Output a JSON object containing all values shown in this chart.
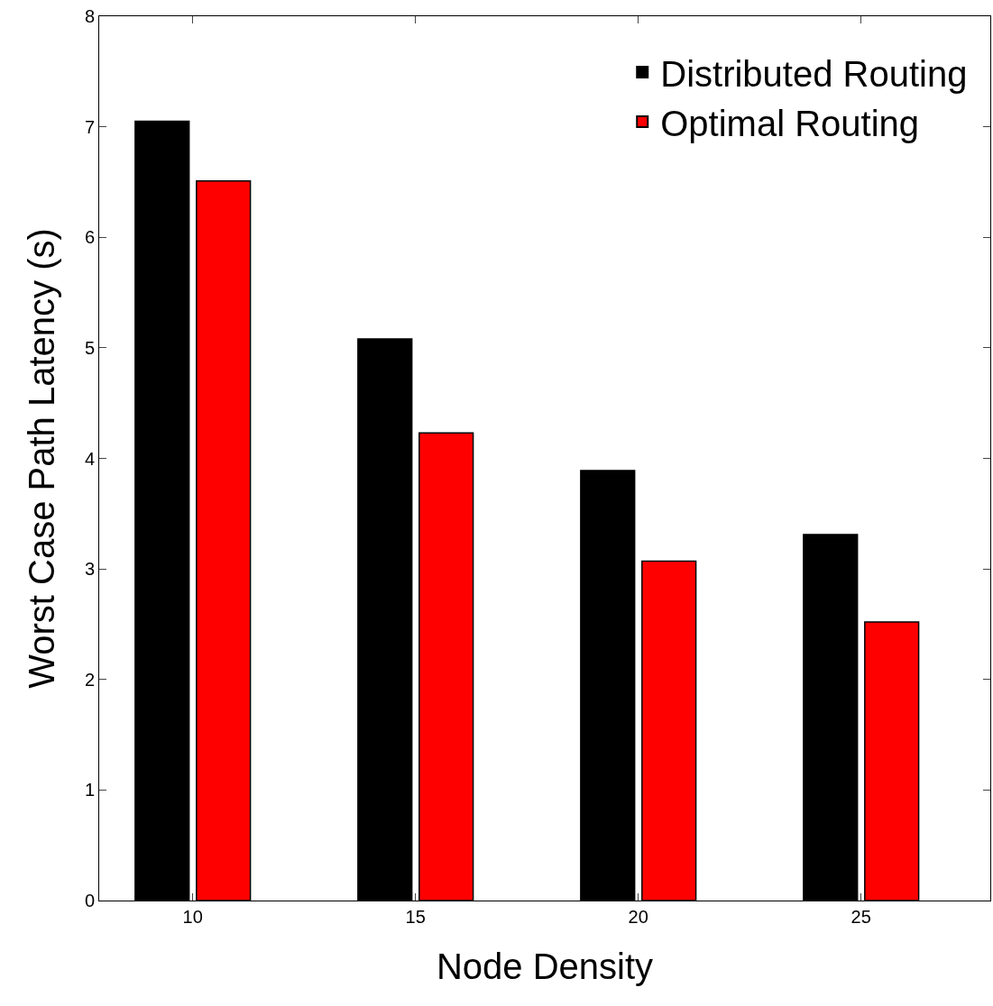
{
  "chart_data": {
    "type": "bar",
    "xlabel": "Node Density",
    "ylabel": "Worst Case Path Latency (s)",
    "categories": [
      "10",
      "15",
      "20",
      "25"
    ],
    "series": [
      {
        "name": "Distributed Routing",
        "color": "#000000",
        "values": [
          7.05,
          5.08,
          3.89,
          3.31
        ]
      },
      {
        "name": "Optimal Routing",
        "color": "#ff0000",
        "values": [
          6.51,
          4.23,
          3.07,
          2.52
        ]
      }
    ],
    "ylim": [
      0,
      8
    ],
    "yticks": [
      0,
      1,
      2,
      3,
      4,
      5,
      6,
      7,
      8
    ],
    "legend": "top right"
  }
}
